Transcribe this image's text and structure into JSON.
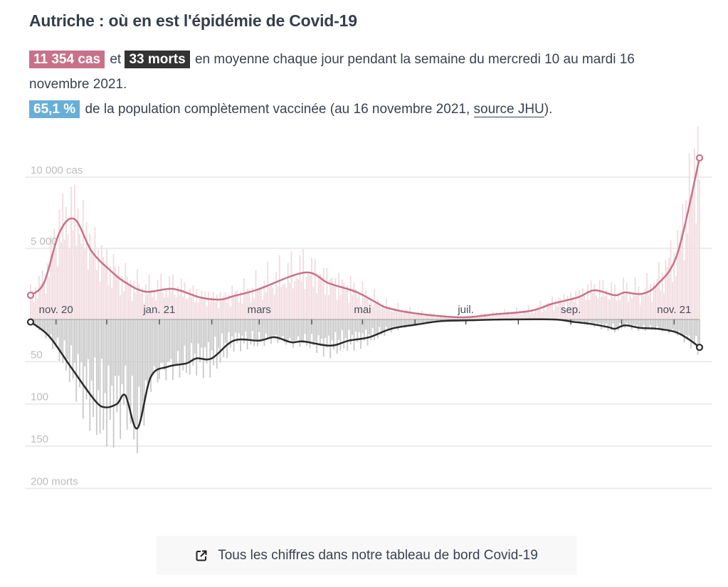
{
  "header": {
    "title": "Autriche : où en est l'épidémie de Covid-19"
  },
  "summary": {
    "cases_badge": "11 354 cas",
    "and": "et",
    "deaths_badge": "33 morts",
    "text1": "en moyenne chaque jour pendant la semaine du mercredi 10 au mardi 16 novembre 2021.",
    "vax_badge": "65,1 %",
    "text2": "de la population complètement vaccinée (au 16 novembre 2021,",
    "source_link": "source JHU",
    "text3": ")."
  },
  "colors": {
    "cases": "#c8718a",
    "cases_bars": "#f1dbe0",
    "deaths": "#2b2b2b",
    "deaths_bars": "#c9c9c9",
    "vaccination": "#68afd8"
  },
  "footer": {
    "link_label": "Tous les chiffres dans notre tableau de bord Covid-19",
    "link_icon": "external-link-icon"
  },
  "chart_data": {
    "type": "bar+line",
    "x_range": [
      "2020-10-17",
      "2021-11-16"
    ],
    "x_ticks": [
      "2020-11-01",
      "2020-12-01",
      "2021-01-01",
      "2021-02-01",
      "2021-03-01",
      "2021-04-01",
      "2021-05-01",
      "2021-06-01",
      "2021-07-01",
      "2021-08-01",
      "2021-09-01",
      "2021-10-01",
      "2021-11-01"
    ],
    "x_tick_labels": [
      {
        "date": "2020-11-01",
        "label": "nov. 20"
      },
      {
        "date": "2021-01-01",
        "label": "jan. 21"
      },
      {
        "date": "2021-03-01",
        "label": "mars"
      },
      {
        "date": "2021-05-01",
        "label": "mai"
      },
      {
        "date": "2021-07-01",
        "label": "juil."
      },
      {
        "date": "2021-09-01",
        "label": "sep."
      },
      {
        "date": "2021-11-01",
        "label": "nov. 21"
      }
    ],
    "cases_axis": {
      "ticks": [
        {
          "value": 5000,
          "label": "5 000"
        },
        {
          "value": 10000,
          "label": "10 000 cas"
        }
      ]
    },
    "deaths_axis": {
      "ticks": [
        {
          "value": 50,
          "label": "50"
        },
        {
          "value": 100,
          "label": "100"
        },
        {
          "value": 150,
          "label": "150"
        },
        {
          "value": 200,
          "label": "200 morts"
        }
      ]
    },
    "series": [
      {
        "key": "cases_7day_avg",
        "points": [
          [
            "2020-10-17",
            1700
          ],
          [
            "2020-10-25",
            2600
          ],
          [
            "2020-11-03",
            6100
          ],
          [
            "2020-11-12",
            7050
          ],
          [
            "2020-11-22",
            4800
          ],
          [
            "2020-12-03",
            3450
          ],
          [
            "2020-12-12",
            2600
          ],
          [
            "2020-12-24",
            1950
          ],
          [
            "2021-01-09",
            2150
          ],
          [
            "2021-01-25",
            1550
          ],
          [
            "2021-02-06",
            1400
          ],
          [
            "2021-02-14",
            1650
          ],
          [
            "2021-02-28",
            2100
          ],
          [
            "2021-03-28",
            3300
          ],
          [
            "2021-04-11",
            2550
          ],
          [
            "2021-04-27",
            1950
          ],
          [
            "2021-05-09",
            1200
          ],
          [
            "2021-05-16",
            800
          ],
          [
            "2021-06-03",
            400
          ],
          [
            "2021-06-29",
            150
          ],
          [
            "2021-07-17",
            350
          ],
          [
            "2021-08-08",
            600
          ],
          [
            "2021-08-21",
            1100
          ],
          [
            "2021-09-05",
            1550
          ],
          [
            "2021-09-15",
            2050
          ],
          [
            "2021-09-27",
            1700
          ],
          [
            "2021-10-03",
            1900
          ],
          [
            "2021-10-13",
            1800
          ],
          [
            "2021-10-22",
            2450
          ],
          [
            "2021-11-03",
            4650
          ],
          [
            "2021-11-16",
            11354
          ]
        ]
      },
      {
        "key": "deaths_7day_avg",
        "points": [
          [
            "2020-10-17",
            3
          ],
          [
            "2020-10-28",
            20
          ],
          [
            "2020-11-10",
            57
          ],
          [
            "2020-11-24",
            96
          ],
          [
            "2020-11-30",
            104
          ],
          [
            "2020-12-07",
            100
          ],
          [
            "2020-12-12",
            90
          ],
          [
            "2020-12-19",
            129
          ],
          [
            "2020-12-27",
            68
          ],
          [
            "2021-01-06",
            56
          ],
          [
            "2021-01-17",
            52
          ],
          [
            "2021-01-23",
            46
          ],
          [
            "2021-02-01",
            46
          ],
          [
            "2021-02-14",
            25
          ],
          [
            "2021-03-01",
            25
          ],
          [
            "2021-03-10",
            21
          ],
          [
            "2021-03-20",
            27
          ],
          [
            "2021-03-27",
            26
          ],
          [
            "2021-04-12",
            31
          ],
          [
            "2021-04-23",
            25
          ],
          [
            "2021-05-05",
            21
          ],
          [
            "2021-05-18",
            11
          ],
          [
            "2021-06-02",
            6
          ],
          [
            "2021-06-16",
            2
          ],
          [
            "2021-07-03",
            1
          ],
          [
            "2021-07-24",
            0
          ],
          [
            "2021-08-22",
            0
          ],
          [
            "2021-09-03",
            3
          ],
          [
            "2021-09-12",
            5
          ],
          [
            "2021-09-23",
            9
          ],
          [
            "2021-09-27",
            11
          ],
          [
            "2021-10-03",
            7
          ],
          [
            "2021-10-12",
            10
          ],
          [
            "2021-10-22",
            11
          ],
          [
            "2021-11-02",
            15
          ],
          [
            "2021-11-10",
            24
          ],
          [
            "2021-11-16",
            33
          ]
        ]
      }
    ]
  }
}
